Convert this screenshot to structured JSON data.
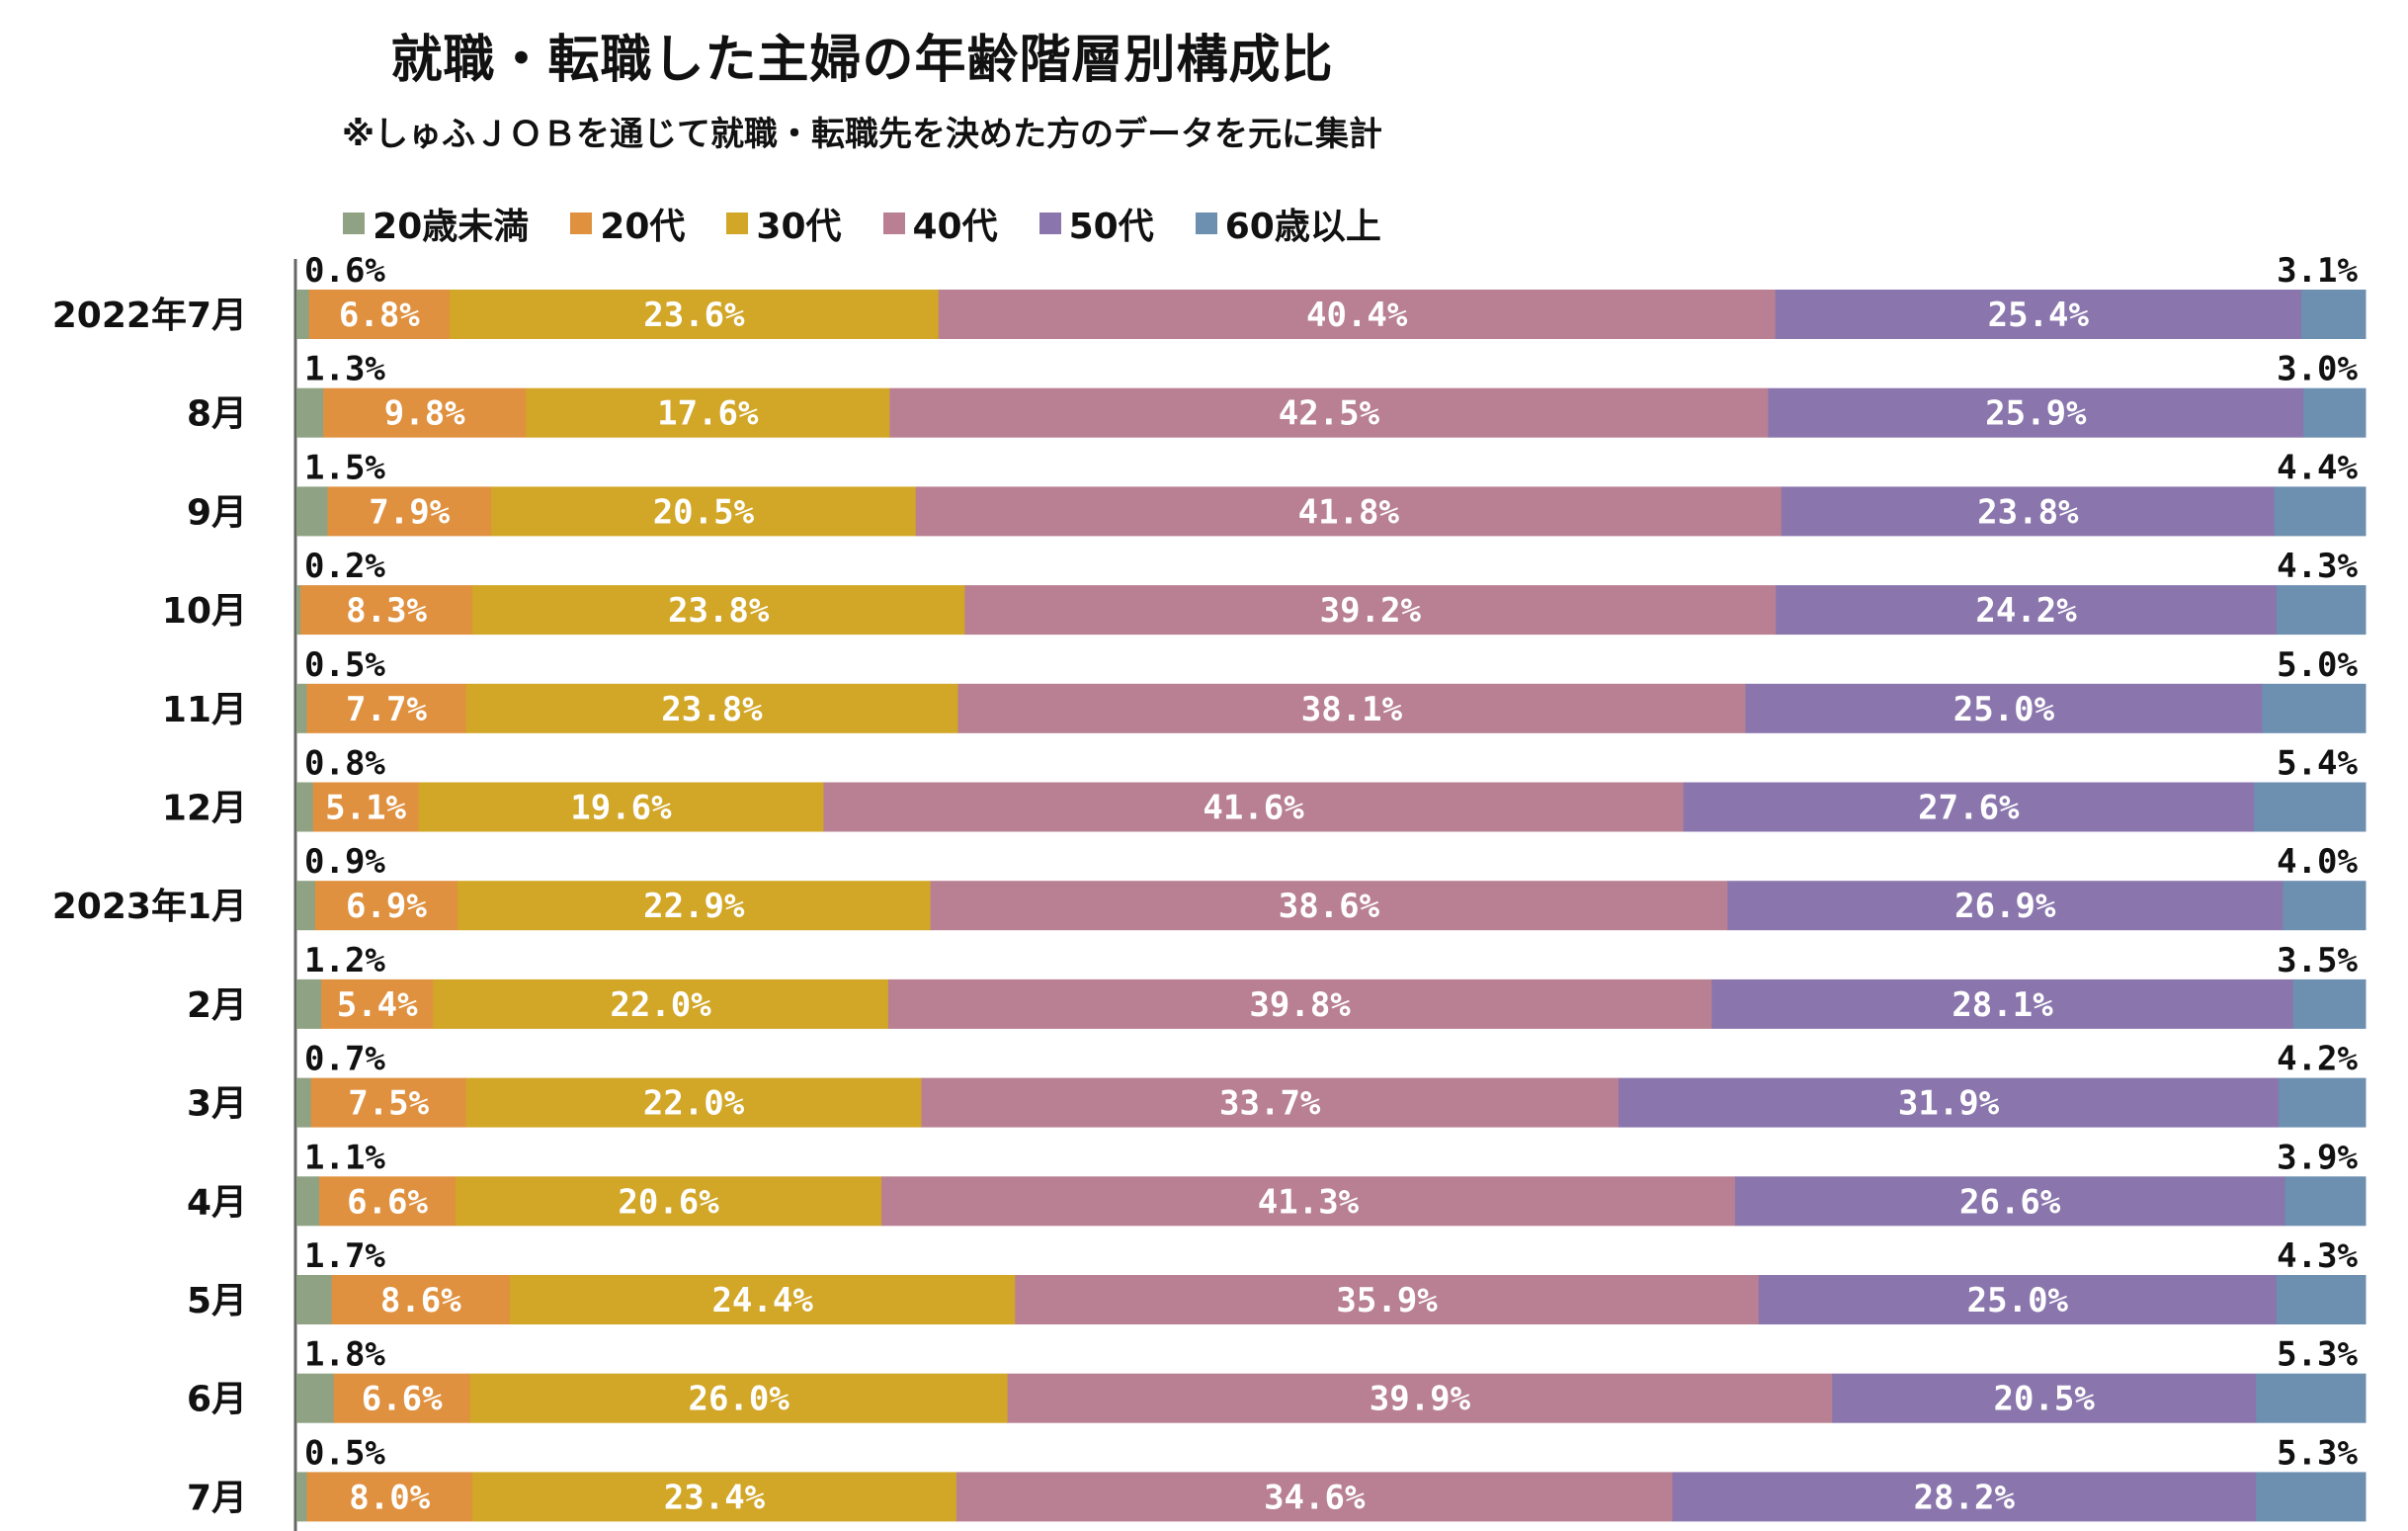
{
  "chart_data": {
    "type": "bar",
    "orientation": "horizontal",
    "stacked": "percent",
    "title": "就職・転職した主婦の年齢階層別構成比",
    "subtitle": "※しゅふＪＯＢを通じて就職・転職先を決めた方のデータを元に集計",
    "legend_position": "top",
    "grid": false,
    "categories": [
      "2022年7月",
      "8月",
      "9月",
      "10月",
      "11月",
      "12月",
      "2023年1月",
      "2月",
      "3月",
      "4月",
      "5月",
      "6月",
      "7月"
    ],
    "series": [
      {
        "name": "20歳未満",
        "color": "#8fa283",
        "values": [
          0.6,
          1.3,
          1.5,
          0.2,
          0.5,
          0.8,
          0.9,
          1.2,
          0.7,
          1.1,
          1.7,
          1.8,
          0.5
        ]
      },
      {
        "name": "20代",
        "color": "#e0913f",
        "values": [
          6.8,
          9.8,
          7.9,
          8.3,
          7.7,
          5.1,
          6.9,
          5.4,
          7.5,
          6.6,
          8.6,
          6.6,
          8.0
        ]
      },
      {
        "name": "30代",
        "color": "#d2a626",
        "values": [
          23.6,
          17.6,
          20.5,
          23.8,
          23.8,
          19.6,
          22.9,
          22.0,
          22.0,
          20.6,
          24.4,
          26.0,
          23.4
        ]
      },
      {
        "name": "40代",
        "color": "#b88092",
        "values": [
          40.4,
          42.5,
          41.8,
          39.2,
          38.1,
          41.6,
          38.6,
          39.8,
          33.7,
          41.3,
          35.9,
          39.9,
          34.6
        ]
      },
      {
        "name": "50代",
        "color": "#8a76ad",
        "values": [
          25.4,
          25.9,
          23.8,
          24.2,
          25.0,
          27.6,
          26.9,
          28.1,
          31.9,
          26.6,
          25.0,
          20.5,
          28.2
        ]
      },
      {
        "name": "60歳以上",
        "color": "#6d8fb0",
        "values": [
          3.1,
          3.0,
          4.4,
          4.3,
          5.0,
          5.4,
          4.0,
          3.5,
          4.2,
          3.9,
          4.3,
          5.3,
          5.3
        ]
      }
    ],
    "value_labels": [
      [
        "0.6%",
        "6.8%",
        "23.6%",
        "40.4%",
        "25.4%",
        "3.1%"
      ],
      [
        "1.3%",
        "9.8%",
        "17.6%",
        "42.5%",
        "25.9%",
        "3.0%"
      ],
      [
        "1.5%",
        "7.9%",
        "20.5%",
        "41.8%",
        "23.8%",
        "4.4%"
      ],
      [
        "0.2%",
        "8.3%",
        "23.8%",
        "39.2%",
        "24.2%",
        "4.3%"
      ],
      [
        "0.5%",
        "7.7%",
        "23.8%",
        "38.1%",
        "25.0%",
        "5.0%"
      ],
      [
        "0.8%",
        "5.1%",
        "19.6%",
        "41.6%",
        "27.6%",
        "5.4%"
      ],
      [
        "0.9%",
        "6.9%",
        "22.9%",
        "38.6%",
        "26.9%",
        "4.0%"
      ],
      [
        "1.2%",
        "5.4%",
        "22.0%",
        "39.8%",
        "28.1%",
        "3.5%"
      ],
      [
        "0.7%",
        "7.5%",
        "22.0%",
        "33.7%",
        "31.9%",
        "4.2%"
      ],
      [
        "1.1%",
        "6.6%",
        "20.6%",
        "41.3%",
        "26.6%",
        "3.9%"
      ],
      [
        "1.7%",
        "8.6%",
        "24.4%",
        "35.9%",
        "25.0%",
        "4.3%"
      ],
      [
        "1.8%",
        "6.6%",
        "26.0%",
        "39.9%",
        "20.5%",
        "5.3%"
      ],
      [
        "0.5%",
        "8.0%",
        "23.4%",
        "34.6%",
        "28.2%",
        "5.3%"
      ]
    ]
  }
}
